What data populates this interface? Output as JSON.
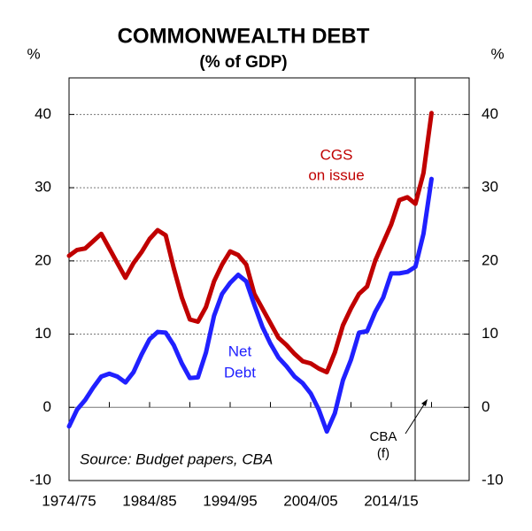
{
  "chart_data": {
    "type": "line",
    "title": "COMMONWEALTH DEBT",
    "subtitle": "(% of GDP)",
    "y_label": "%",
    "y2_label": "%",
    "source": "Source: Budget papers, CBA",
    "forecast_label": [
      "CBA",
      "(f)"
    ],
    "categories": [
      "1974/75",
      null,
      null,
      null,
      null,
      null,
      null,
      null,
      null,
      null,
      "1984/85",
      null,
      null,
      null,
      null,
      null,
      null,
      null,
      null,
      null,
      "1994/95",
      null,
      null,
      null,
      null,
      null,
      null,
      null,
      null,
      null,
      "2004/05",
      null,
      null,
      null,
      null,
      null,
      null,
      null,
      null,
      null,
      "2014/15",
      null,
      null,
      null,
      null,
      null
    ],
    "ylim": [
      -10,
      45
    ],
    "yticks": [
      -10,
      0,
      10,
      20,
      30,
      40
    ],
    "y2lim": [
      -10,
      45
    ],
    "y2ticks": [
      -10,
      0,
      10,
      20,
      30,
      40
    ],
    "grid": true,
    "series": [
      {
        "label": [
          "CGS",
          "on issue"
        ],
        "color": "#c00000",
        "values": [
          20.7,
          21.5,
          21.7,
          22.7,
          23.7,
          21.7,
          19.7,
          17.7,
          19.7,
          21.2,
          23.0,
          24.2,
          23.5,
          19.0,
          15.0,
          12.0,
          11.7,
          13.7,
          17.2,
          19.5,
          21.3,
          20.8,
          19.5,
          15.5,
          13.5,
          11.5,
          9.5,
          8.5,
          7.3,
          6.3,
          6.0,
          5.3,
          4.8,
          7.5,
          11.2,
          13.5,
          15.5,
          16.5,
          20.0,
          22.5,
          25.0,
          28.3,
          28.7,
          27.8,
          32.0,
          40.2
        ]
      },
      {
        "label": [
          "Net",
          "Debt"
        ],
        "color": "#2020ff",
        "values": [
          -2.6,
          -0.3,
          1.0,
          2.7,
          4.2,
          4.6,
          4.2,
          3.4,
          4.8,
          7.2,
          9.3,
          10.3,
          10.2,
          8.5,
          6.0,
          4.0,
          4.1,
          7.5,
          12.5,
          15.5,
          17.0,
          18.1,
          17.2,
          14.0,
          11.0,
          8.7,
          6.8,
          5.6,
          4.2,
          3.3,
          1.9,
          -0.3,
          -3.3,
          -0.8,
          3.7,
          6.5,
          10.2,
          10.4,
          13.0,
          15.0,
          18.3,
          18.3,
          18.5,
          19.2,
          23.7,
          31.2
        ]
      }
    ]
  }
}
